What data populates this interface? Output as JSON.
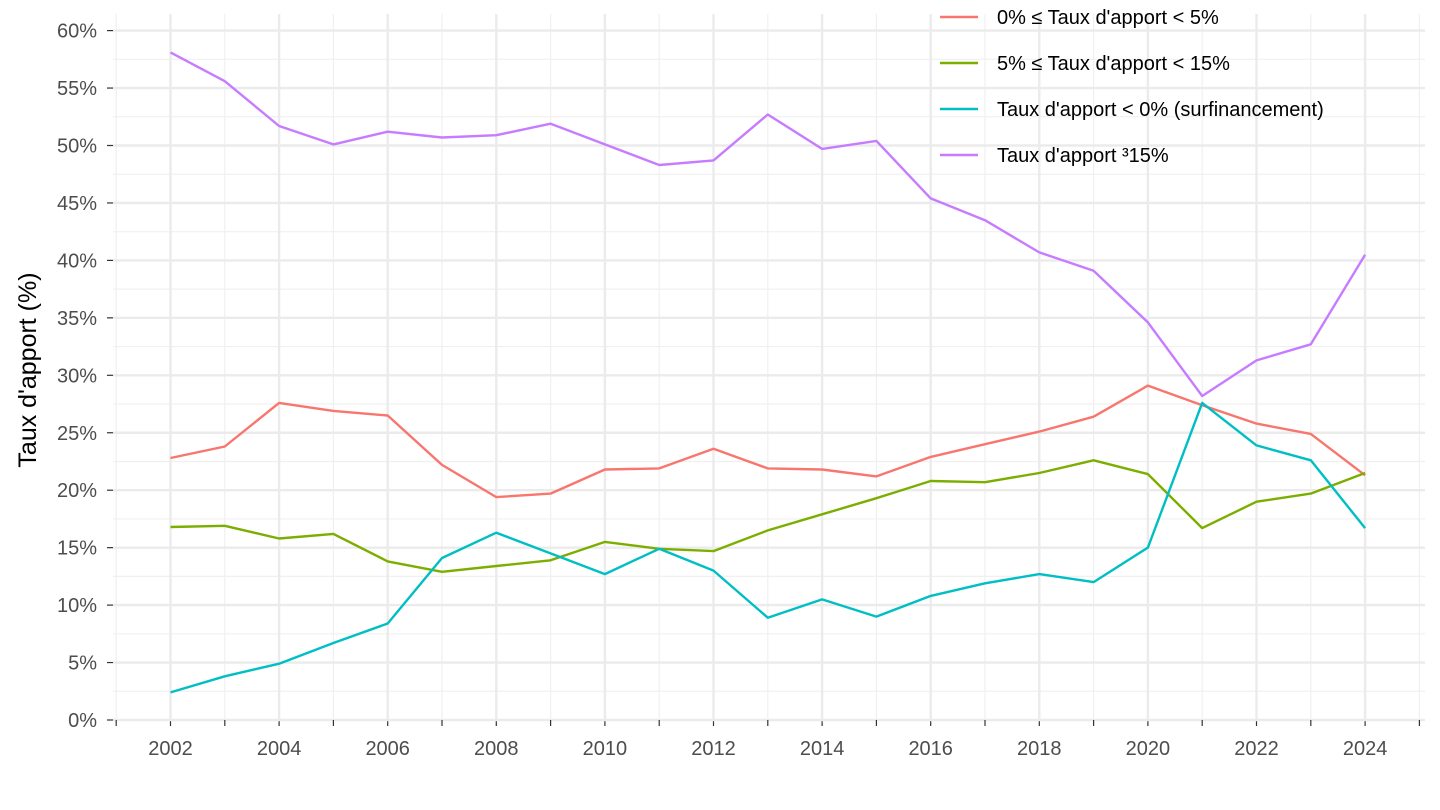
{
  "chart_data": {
    "type": "line",
    "title": "",
    "xlabel": "",
    "ylabel": "Taux d'apport (%)",
    "x": [
      2002,
      2003,
      2004,
      2005,
      2006,
      2007,
      2008,
      2009,
      2010,
      2011,
      2012,
      2013,
      2014,
      2015,
      2016,
      2017,
      2018,
      2019,
      2020,
      2021,
      2022,
      2023,
      2024
    ],
    "xlim": [
      2001,
      2025
    ],
    "ylim": [
      0,
      60
    ],
    "x_ticks": [
      2002,
      2004,
      2006,
      2008,
      2010,
      2012,
      2014,
      2016,
      2018,
      2020,
      2022,
      2024
    ],
    "y_ticks": [
      0,
      5,
      10,
      15,
      20,
      25,
      30,
      35,
      40,
      45,
      50,
      55,
      60
    ],
    "y_tick_labels": [
      "0%",
      "5%",
      "10%",
      "15%",
      "20%",
      "25%",
      "30%",
      "35%",
      "40%",
      "45%",
      "50%",
      "55%",
      "60%"
    ],
    "grid": true,
    "legend_position": "top-right",
    "series": [
      {
        "name": "0% ≤ Taux d'apport < 5%",
        "color": "#F8766D",
        "values": [
          22.8,
          23.8,
          27.6,
          26.9,
          26.5,
          22.2,
          19.4,
          19.7,
          21.8,
          21.9,
          23.6,
          21.9,
          21.8,
          21.2,
          22.9,
          24.0,
          25.1,
          26.4,
          29.1,
          27.4,
          25.8,
          24.9,
          21.3
        ]
      },
      {
        "name": "5% ≤ Taux d'apport < 15%",
        "color": "#7CAE00",
        "values": [
          16.8,
          16.9,
          15.8,
          16.2,
          13.8,
          12.9,
          13.4,
          13.9,
          15.5,
          14.9,
          14.7,
          16.5,
          17.9,
          19.3,
          20.8,
          20.7,
          21.5,
          22.6,
          21.4,
          16.7,
          19.0,
          19.7,
          21.5
        ]
      },
      {
        "name": "Taux d'apport < 0% (surfinancement)",
        "color": "#00BFC4",
        "values": [
          2.4,
          3.8,
          4.9,
          6.7,
          8.4,
          14.1,
          16.3,
          14.5,
          12.7,
          14.9,
          13.0,
          8.9,
          10.5,
          9.0,
          10.8,
          11.9,
          12.7,
          12.0,
          15.0,
          27.6,
          23.9,
          22.6,
          16.7
        ]
      },
      {
        "name": "Taux d'apport ³15%",
        "color": "#C77CFF",
        "values": [
          58.1,
          55.6,
          51.7,
          50.1,
          51.2,
          50.7,
          50.9,
          51.9,
          50.1,
          48.3,
          48.7,
          52.7,
          49.7,
          50.4,
          45.4,
          43.5,
          40.7,
          39.1,
          34.6,
          28.2,
          31.3,
          32.7,
          40.5
        ]
      }
    ]
  }
}
